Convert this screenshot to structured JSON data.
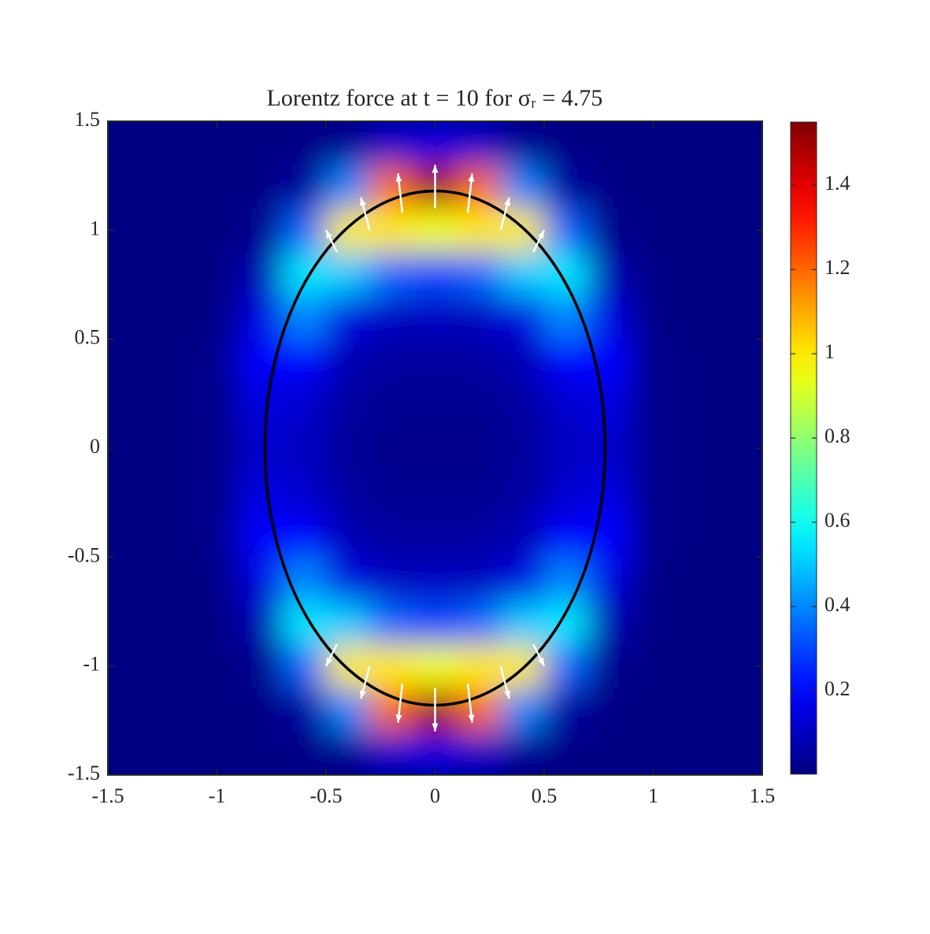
{
  "chart_data": {
    "type": "heatmap",
    "title": "Lorentz force at t = 10 for σᵣ = 4.75",
    "xlim": [
      -1.5,
      1.5
    ],
    "ylim": [
      -1.5,
      1.5
    ],
    "xticks": [
      -1.5,
      -1,
      -0.5,
      0,
      0.5,
      1,
      1.5
    ],
    "yticks": [
      -1.5,
      -1,
      -0.5,
      0,
      0.5,
      1,
      1.5
    ],
    "colormap": "jet",
    "clim": [
      0.002,
      1.55
    ],
    "cticks": [
      0.2,
      0.4,
      0.6,
      0.8,
      1,
      1.2,
      1.4
    ],
    "heatmap": {
      "x": [
        -1.4,
        -1.2,
        -1.0,
        -0.8,
        -0.6,
        -0.4,
        -0.2,
        0,
        0.2,
        0.4,
        0.6,
        0.8,
        1.0,
        1.2,
        1.4
      ],
      "y": [
        -1.4,
        -1.2,
        -1.0,
        -0.8,
        -0.6,
        -0.4,
        -0.2,
        0,
        0.2,
        0.4,
        0.6,
        0.8,
        1.0,
        1.2,
        1.4
      ],
      "z": [
        [
          0.01,
          0.01,
          0.01,
          0.01,
          0.01,
          0.03,
          0.12,
          0.15,
          0.12,
          0.03,
          0.01,
          0.01,
          0.01,
          0.01,
          0.01
        ],
        [
          0.01,
          0.01,
          0.01,
          0.01,
          0.05,
          0.4,
          1.2,
          1.5,
          1.2,
          0.4,
          0.05,
          0.01,
          0.01,
          0.01,
          0.01
        ],
        [
          0.01,
          0.01,
          0.01,
          0.02,
          0.35,
          1.0,
          1.0,
          0.95,
          1.0,
          1.0,
          0.35,
          0.02,
          0.01,
          0.01,
          0.01
        ],
        [
          0.01,
          0.01,
          0.01,
          0.08,
          0.55,
          0.5,
          0.35,
          0.3,
          0.35,
          0.5,
          0.55,
          0.08,
          0.01,
          0.01,
          0.01
        ],
        [
          0.01,
          0.01,
          0.01,
          0.15,
          0.4,
          0.15,
          0.1,
          0.1,
          0.1,
          0.15,
          0.4,
          0.15,
          0.01,
          0.01,
          0.01
        ],
        [
          0.01,
          0.01,
          0.02,
          0.2,
          0.2,
          0.08,
          0.05,
          0.05,
          0.05,
          0.08,
          0.2,
          0.2,
          0.02,
          0.01,
          0.01
        ],
        [
          0.01,
          0.01,
          0.02,
          0.15,
          0.12,
          0.05,
          0.03,
          0.03,
          0.03,
          0.05,
          0.12,
          0.15,
          0.02,
          0.01,
          0.01
        ],
        [
          0.01,
          0.01,
          0.02,
          0.12,
          0.1,
          0.04,
          0.02,
          0.02,
          0.02,
          0.04,
          0.1,
          0.12,
          0.02,
          0.01,
          0.01
        ],
        [
          0.01,
          0.01,
          0.02,
          0.15,
          0.12,
          0.05,
          0.03,
          0.03,
          0.03,
          0.05,
          0.12,
          0.15,
          0.02,
          0.01,
          0.01
        ],
        [
          0.01,
          0.01,
          0.02,
          0.2,
          0.2,
          0.08,
          0.05,
          0.05,
          0.05,
          0.08,
          0.2,
          0.2,
          0.02,
          0.01,
          0.01
        ],
        [
          0.01,
          0.01,
          0.01,
          0.15,
          0.4,
          0.15,
          0.1,
          0.1,
          0.1,
          0.15,
          0.4,
          0.15,
          0.01,
          0.01,
          0.01
        ],
        [
          0.01,
          0.01,
          0.01,
          0.08,
          0.55,
          0.5,
          0.35,
          0.3,
          0.35,
          0.5,
          0.55,
          0.08,
          0.01,
          0.01,
          0.01
        ],
        [
          0.01,
          0.01,
          0.01,
          0.02,
          0.35,
          1.0,
          1.0,
          0.95,
          1.0,
          1.0,
          0.35,
          0.02,
          0.01,
          0.01,
          0.01
        ],
        [
          0.01,
          0.01,
          0.01,
          0.01,
          0.05,
          0.4,
          1.2,
          1.5,
          1.2,
          0.4,
          0.05,
          0.01,
          0.01,
          0.01,
          0.01
        ],
        [
          0.01,
          0.01,
          0.01,
          0.01,
          0.01,
          0.03,
          0.12,
          0.15,
          0.12,
          0.03,
          0.01,
          0.01,
          0.01,
          0.01,
          0.01
        ]
      ]
    },
    "quiver": {
      "color": "#ffffff",
      "x": [
        0,
        -0.15,
        0.15,
        -0.3,
        0.3,
        -0.45,
        0.45,
        0,
        -0.15,
        0.15,
        -0.3,
        0.3,
        -0.45,
        0.45
      ],
      "y": [
        1.1,
        1.08,
        1.08,
        1.0,
        1.0,
        0.9,
        0.9,
        -1.1,
        -1.08,
        -1.08,
        -1.0,
        -1.0,
        -0.9,
        -0.9
      ],
      "u": [
        0,
        -0.02,
        0.02,
        -0.04,
        0.04,
        -0.05,
        0.05,
        0,
        -0.02,
        0.02,
        -0.04,
        0.04,
        -0.05,
        0.05
      ],
      "v": [
        0.2,
        0.18,
        0.18,
        0.15,
        0.15,
        0.1,
        0.1,
        -0.2,
        -0.18,
        -0.18,
        -0.15,
        -0.15,
        -0.1,
        -0.1
      ]
    },
    "ellipse": {
      "center": [
        0,
        0
      ],
      "rx": 0.78,
      "ry": 1.18,
      "color": "#000000"
    }
  }
}
